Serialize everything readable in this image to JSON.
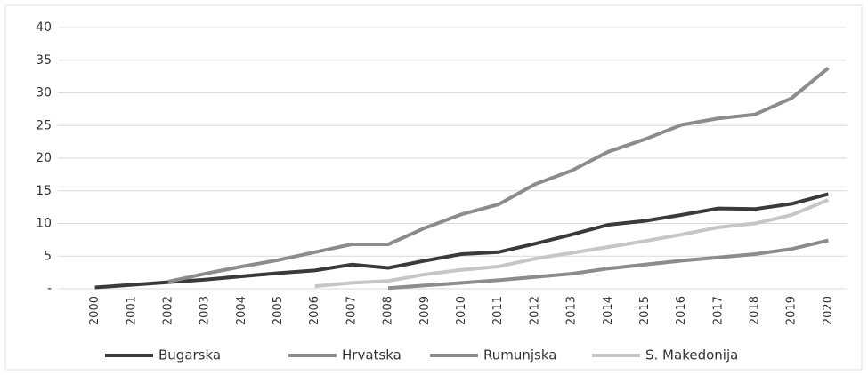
{
  "chart_data": {
    "type": "line",
    "categories": [
      "2000",
      "2001",
      "2002",
      "2003",
      "2004",
      "2005",
      "2006",
      "2007",
      "2008",
      "2009",
      "2010",
      "2011",
      "2012",
      "2013",
      "2014",
      "2015",
      "2016",
      "2017",
      "2018",
      "2019",
      "2020"
    ],
    "series": [
      {
        "name": "Bugarska",
        "color": "#3a3a3a",
        "values": [
          0.2,
          0.6,
          1.0,
          1.4,
          1.9,
          2.4,
          2.8,
          3.7,
          3.2,
          4.3,
          5.3,
          5.6,
          6.9,
          8.3,
          9.8,
          10.4,
          11.3,
          12.3,
          12.2,
          13.0,
          14.5
        ]
      },
      {
        "name": "Hrvatska",
        "color": "#8c8c8c",
        "values": [
          null,
          null,
          1.1,
          2.3,
          3.4,
          4.4,
          5.6,
          6.8,
          6.8,
          9.3,
          11.4,
          12.9,
          16.0,
          18.1,
          21.0,
          22.9,
          25.1,
          26.1,
          26.7,
          29.2,
          33.8
        ]
      },
      {
        "name": "Rumunjska",
        "color": "#8c8c8c",
        "values": [
          null,
          null,
          null,
          null,
          null,
          null,
          null,
          null,
          0.1,
          0.5,
          0.9,
          1.3,
          1.8,
          2.3,
          3.1,
          3.7,
          4.3,
          4.8,
          5.3,
          6.1,
          7.4
        ]
      },
      {
        "name": "S. Makedonija",
        "color": "#c6c6c6",
        "values": [
          null,
          null,
          null,
          null,
          null,
          null,
          0.4,
          0.9,
          1.2,
          2.2,
          2.9,
          3.4,
          4.6,
          5.5,
          6.4,
          7.3,
          8.3,
          9.4,
          10.0,
          11.3,
          13.6
        ]
      }
    ],
    "ylim": [
      0,
      40
    ],
    "yticks": [
      {
        "value": 0,
        "label": "-"
      },
      5,
      10,
      15,
      20,
      25,
      30,
      35,
      40
    ],
    "grid": true,
    "legend": "bottom"
  }
}
